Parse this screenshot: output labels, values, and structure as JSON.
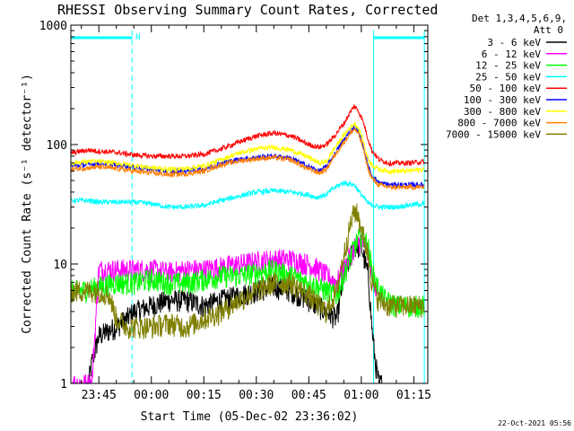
{
  "chart_data": {
    "type": "line",
    "title": "RHESSI Observing Summary Count Rates, Corrected",
    "xlabel": "Start Time (05-Dec-02 23:36:02)",
    "ylabel": "Corrected Count Rate (s⁻¹ detector⁻¹)",
    "yscale": "log",
    "ylim": [
      1,
      1000
    ],
    "xlim_minutes": [
      -8,
      94
    ],
    "x_ticks": [
      {
        "label": "23:45",
        "min": 0
      },
      {
        "label": "00:00",
        "min": 15
      },
      {
        "label": "00:15",
        "min": 30
      },
      {
        "label": "00:30",
        "min": 45
      },
      {
        "label": "00:45",
        "min": 60
      },
      {
        "label": "01:00",
        "min": 75
      },
      {
        "label": "01:15",
        "min": 90
      }
    ],
    "y_ticks": [
      {
        "label": "1",
        "value": 1
      },
      {
        "label": "10",
        "value": 10
      },
      {
        "label": "100",
        "value": 100
      },
      {
        "label": "1000",
        "value": 1000
      }
    ],
    "legend_header": [
      "Det 1,3,4,5,6,9,",
      "Att 0"
    ],
    "legend_placement": "right",
    "footer_date": "22-Oct-2021 05:56",
    "night_marker_label": "N",
    "night_intervals": [
      {
        "start": -8,
        "end": 9.5
      },
      {
        "start": 78.5,
        "end": 93
      }
    ],
    "series": [
      {
        "name": "3 - 6 keV",
        "color": "#000000",
        "x": [
          -3,
          -2,
          0,
          5,
          8,
          10,
          15,
          20,
          25,
          30,
          35,
          40,
          45,
          50,
          55,
          60,
          65,
          68,
          70,
          73,
          75,
          77,
          78,
          79,
          80,
          81
        ],
        "y": [
          1,
          1.5,
          2.5,
          3,
          3.5,
          4,
          4.5,
          5,
          5,
          4.5,
          5,
          5.5,
          6,
          6.5,
          6,
          5,
          4,
          3.5,
          8,
          14,
          14,
          8,
          3,
          1.5,
          1,
          1
        ]
      },
      {
        "name": "6 - 12 keV",
        "color": "#ff00ff",
        "x": [
          -8,
          -5,
          -3,
          -2,
          0,
          5,
          10,
          15,
          20,
          25,
          30,
          35,
          40,
          45,
          50,
          55,
          60,
          63,
          65,
          68,
          70,
          73,
          75,
          77,
          78,
          80
        ],
        "y": [
          1,
          1,
          1,
          1,
          9,
          9,
          9,
          9,
          8.5,
          9,
          9,
          9.5,
          10,
          10.5,
          11,
          11,
          10,
          9,
          8,
          7,
          9,
          14,
          16,
          12,
          8,
          6
        ]
      },
      {
        "name": "12 - 25 keV",
        "color": "#00ff00",
        "x": [
          -8,
          -5,
          0,
          5,
          10,
          15,
          20,
          25,
          30,
          35,
          40,
          45,
          50,
          55,
          60,
          65,
          68,
          70,
          73,
          75,
          77,
          78,
          80,
          82,
          85,
          90,
          93
        ],
        "y": [
          6,
          6,
          6.5,
          7,
          7,
          7.5,
          7,
          7,
          7.5,
          8,
          8,
          8.5,
          9,
          8,
          7,
          6,
          5.5,
          8,
          14,
          18,
          14,
          9,
          6,
          5,
          4.5,
          4.5,
          4.5
        ]
      },
      {
        "name": "25 - 50 keV",
        "color": "#00ffff",
        "x": [
          -8,
          -3,
          0,
          5,
          10,
          15,
          20,
          25,
          30,
          35,
          40,
          45,
          50,
          55,
          60,
          62,
          65,
          67,
          70,
          73,
          75,
          77,
          80,
          83,
          85,
          88,
          93
        ],
        "y": [
          34,
          34,
          33,
          33,
          33,
          32,
          30,
          30,
          31,
          34,
          37,
          40,
          41,
          40,
          38,
          36,
          38,
          43,
          48,
          46,
          38,
          32,
          30,
          30,
          30,
          31,
          32
        ]
      },
      {
        "name": "50 - 100 keV",
        "color": "#ff0000",
        "x": [
          -8,
          -3,
          0,
          5,
          10,
          15,
          20,
          25,
          30,
          35,
          40,
          45,
          50,
          55,
          60,
          63,
          65,
          67,
          70,
          72,
          73,
          74,
          75,
          76,
          77,
          78,
          80,
          83,
          85,
          88,
          93
        ],
        "y": [
          85,
          90,
          88,
          86,
          82,
          80,
          80,
          80,
          83,
          92,
          105,
          118,
          125,
          118,
          100,
          95,
          100,
          115,
          150,
          190,
          210,
          195,
          170,
          140,
          110,
          90,
          75,
          70,
          70,
          70,
          72
        ]
      },
      {
        "name": "100 - 300 keV",
        "color": "#0000ff",
        "x": [
          -8,
          -3,
          0,
          5,
          10,
          15,
          20,
          25,
          30,
          35,
          40,
          45,
          50,
          55,
          60,
          63,
          65,
          67,
          70,
          72,
          73,
          74,
          75,
          76,
          77,
          78,
          80,
          83,
          85,
          88,
          93
        ],
        "y": [
          66,
          68,
          70,
          68,
          65,
          62,
          60,
          60,
          62,
          70,
          75,
          78,
          80,
          77,
          65,
          60,
          65,
          80,
          110,
          130,
          140,
          130,
          110,
          85,
          65,
          55,
          48,
          46,
          46,
          46,
          46
        ]
      },
      {
        "name": "300 - 800 keV",
        "color": "#ffff00",
        "x": [
          -8,
          -3,
          0,
          5,
          10,
          15,
          20,
          25,
          30,
          35,
          40,
          45,
          50,
          55,
          60,
          63,
          65,
          67,
          70,
          72,
          73,
          74,
          75,
          76,
          77,
          78,
          80,
          83,
          85,
          88,
          93
        ],
        "y": [
          70,
          72,
          72,
          70,
          67,
          64,
          62,
          63,
          66,
          75,
          85,
          92,
          95,
          90,
          78,
          70,
          72,
          90,
          120,
          140,
          150,
          140,
          120,
          95,
          75,
          68,
          62,
          60,
          60,
          60,
          62
        ]
      },
      {
        "name": "800 - 7000 keV",
        "color": "#ff7f00",
        "x": [
          -8,
          -3,
          0,
          5,
          10,
          15,
          20,
          25,
          30,
          35,
          40,
          45,
          50,
          55,
          60,
          63,
          65,
          67,
          70,
          72,
          73,
          74,
          75,
          76,
          77,
          78,
          80,
          83,
          85,
          88,
          93
        ],
        "y": [
          62,
          64,
          65,
          63,
          60,
          58,
          56,
          57,
          60,
          68,
          73,
          76,
          78,
          74,
          62,
          58,
          62,
          78,
          105,
          125,
          135,
          125,
          105,
          82,
          62,
          52,
          46,
          44,
          44,
          44,
          44
        ]
      },
      {
        "name": "7000 - 15000 keV",
        "color": "#7f7f00",
        "x": [
          -8,
          -5,
          0,
          3,
          5,
          8,
          10,
          15,
          20,
          25,
          30,
          35,
          40,
          45,
          50,
          55,
          60,
          63,
          65,
          68,
          70,
          72,
          73,
          74,
          75,
          77,
          78,
          80,
          83,
          85,
          88,
          93
        ],
        "y": [
          6,
          6,
          6,
          5.5,
          3.5,
          3,
          3,
          3,
          3.2,
          3,
          3.5,
          4,
          5,
          6,
          7,
          7,
          5.5,
          4.5,
          4,
          6,
          12,
          22,
          28,
          26,
          20,
          12,
          7,
          5,
          4.5,
          4.5,
          4.5,
          4.5
        ]
      }
    ]
  }
}
